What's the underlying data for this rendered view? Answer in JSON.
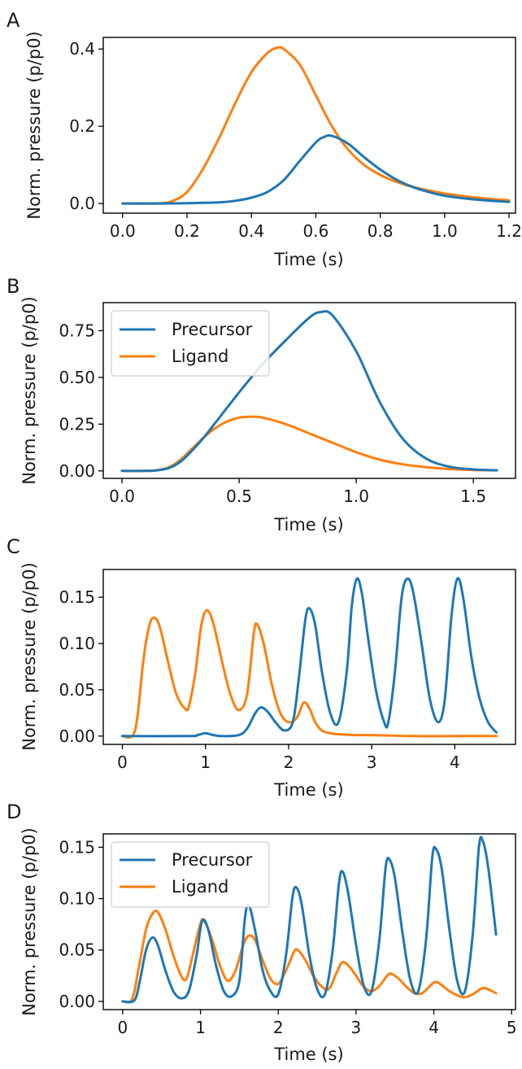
{
  "colors": {
    "precursor": "#1f77b4",
    "ligand": "#ff7f0e"
  },
  "chart_data": [
    {
      "panel": "A",
      "type": "line",
      "xlabel": "Time (s)",
      "ylabel": "Norm. pressure (p/p0)",
      "xlim": [
        -0.06,
        1.22
      ],
      "ylim": [
        -0.025,
        0.43
      ],
      "xticks": [
        0.0,
        0.2,
        0.4,
        0.6,
        0.8,
        1.0,
        1.2
      ],
      "xtick_labels": [
        "0.0",
        "0.2",
        "0.4",
        "0.6",
        "0.8",
        "1.0",
        "1.2"
      ],
      "yticks": [
        0.0,
        0.2,
        0.4
      ],
      "ytick_labels": [
        "0.0",
        "0.2",
        "0.4"
      ],
      "legend": null,
      "series": [
        {
          "key": "precursor",
          "color": "#1f77b4",
          "x": [
            0,
            0.1,
            0.2,
            0.3,
            0.35,
            0.4,
            0.45,
            0.5,
            0.55,
            0.6,
            0.625,
            0.65,
            0.7,
            0.75,
            0.8,
            0.85,
            0.9,
            0.95,
            1.0,
            1.1,
            1.2
          ],
          "y": [
            0,
            0,
            0.001,
            0.003,
            0.007,
            0.015,
            0.03,
            0.06,
            0.11,
            0.158,
            0.172,
            0.175,
            0.155,
            0.12,
            0.088,
            0.062,
            0.043,
            0.03,
            0.02,
            0.01,
            0.004
          ]
        },
        {
          "key": "ligand",
          "color": "#ff7f0e",
          "x": [
            0,
            0.1,
            0.15,
            0.2,
            0.25,
            0.3,
            0.35,
            0.4,
            0.45,
            0.48,
            0.5,
            0.55,
            0.6,
            0.65,
            0.7,
            0.75,
            0.8,
            0.85,
            0.9,
            1.0,
            1.1,
            1.2
          ],
          "y": [
            0,
            0,
            0.005,
            0.03,
            0.09,
            0.17,
            0.26,
            0.34,
            0.39,
            0.403,
            0.4,
            0.36,
            0.28,
            0.2,
            0.14,
            0.1,
            0.074,
            0.056,
            0.043,
            0.026,
            0.015,
            0.008
          ]
        }
      ]
    },
    {
      "panel": "B",
      "type": "line",
      "xlabel": "Time (s)",
      "ylabel": "Norm. pressure (p/p0)",
      "xlim": [
        -0.08,
        1.68
      ],
      "ylim": [
        -0.04,
        0.9
      ],
      "xticks": [
        0.0,
        0.5,
        1.0,
        1.5
      ],
      "xtick_labels": [
        "0.0",
        "0.5",
        "1.0",
        "1.5"
      ],
      "yticks": [
        0.0,
        0.25,
        0.5,
        0.75
      ],
      "ytick_labels": [
        "0.00",
        "0.25",
        "0.50",
        "0.75"
      ],
      "legend": {
        "position": "top-left",
        "labels": [
          "Precursor",
          "Ligand"
        ]
      },
      "series": [
        {
          "key": "precursor",
          "color": "#1f77b4",
          "x": [
            0,
            0.1,
            0.15,
            0.2,
            0.25,
            0.3,
            0.35,
            0.4,
            0.5,
            0.6,
            0.7,
            0.8,
            0.85,
            0.9,
            1.0,
            1.1,
            1.2,
            1.3,
            1.4,
            1.5,
            1.6
          ],
          "y": [
            0,
            0,
            0.003,
            0.015,
            0.05,
            0.11,
            0.18,
            0.26,
            0.42,
            0.57,
            0.7,
            0.82,
            0.85,
            0.83,
            0.64,
            0.37,
            0.17,
            0.065,
            0.022,
            0.008,
            0.003
          ]
        },
        {
          "key": "ligand",
          "color": "#ff7f0e",
          "x": [
            0,
            0.1,
            0.15,
            0.2,
            0.25,
            0.3,
            0.35,
            0.4,
            0.45,
            0.5,
            0.55,
            0.6,
            0.7,
            0.8,
            0.9,
            1.0,
            1.1,
            1.2,
            1.3,
            1.4,
            1.5,
            1.6
          ],
          "y": [
            0,
            0,
            0.004,
            0.02,
            0.06,
            0.12,
            0.18,
            0.23,
            0.265,
            0.285,
            0.29,
            0.285,
            0.25,
            0.2,
            0.15,
            0.1,
            0.06,
            0.035,
            0.02,
            0.01,
            0.005,
            0.003
          ]
        }
      ]
    },
    {
      "panel": "C",
      "type": "line",
      "xlabel": "Time (s)",
      "ylabel": "Norm. pressure (p/p0)",
      "xlim": [
        -0.23,
        4.73
      ],
      "ylim": [
        -0.009,
        0.18
      ],
      "xticks": [
        0,
        1,
        2,
        3,
        4
      ],
      "xtick_labels": [
        "0",
        "1",
        "2",
        "3",
        "4"
      ],
      "yticks": [
        0.0,
        0.05,
        0.1,
        0.15
      ],
      "ytick_labels": [
        "0.00",
        "0.05",
        "0.10",
        "0.15"
      ],
      "legend": null,
      "series": [
        {
          "key": "precursor",
          "color": "#1f77b4",
          "x": [
            0,
            0.8,
            0.9,
            1.0,
            1.1,
            1.2,
            1.4,
            1.5,
            1.6,
            1.67,
            1.75,
            1.85,
            1.95,
            2.05,
            2.12,
            2.2,
            2.25,
            2.32,
            2.4,
            2.5,
            2.6,
            2.7,
            2.76,
            2.82,
            2.88,
            2.95,
            3.05,
            3.15,
            3.2,
            3.28,
            3.36,
            3.43,
            3.5,
            3.6,
            3.7,
            3.8,
            3.88,
            3.96,
            4.03,
            4.1,
            4.2,
            4.3,
            4.4,
            4.5
          ],
          "y": [
            0,
            0,
            0.001,
            0.003,
            0.001,
            0,
            0.001,
            0.008,
            0.025,
            0.031,
            0.026,
            0.014,
            0.006,
            0.015,
            0.06,
            0.125,
            0.138,
            0.12,
            0.07,
            0.025,
            0.015,
            0.07,
            0.14,
            0.17,
            0.155,
            0.11,
            0.05,
            0.015,
            0.015,
            0.07,
            0.15,
            0.17,
            0.155,
            0.1,
            0.04,
            0.015,
            0.04,
            0.13,
            0.17,
            0.15,
            0.085,
            0.04,
            0.015,
            0.004
          ]
        },
        {
          "key": "ligand",
          "color": "#ff7f0e",
          "x": [
            0,
            0.12,
            0.18,
            0.25,
            0.32,
            0.38,
            0.45,
            0.55,
            0.65,
            0.75,
            0.8,
            0.88,
            0.95,
            1.02,
            1.1,
            1.2,
            1.3,
            1.4,
            1.5,
            1.58,
            1.62,
            1.7,
            1.8,
            1.9,
            2.0,
            2.1,
            2.18,
            2.25,
            2.32,
            2.4,
            2.5,
            2.6,
            2.8,
            3.0,
            3.5,
            4.0,
            4.5
          ],
          "y": [
            0,
            0,
            0.02,
            0.08,
            0.118,
            0.128,
            0.118,
            0.08,
            0.045,
            0.03,
            0.032,
            0.07,
            0.12,
            0.136,
            0.12,
            0.08,
            0.045,
            0.028,
            0.045,
            0.11,
            0.121,
            0.1,
            0.055,
            0.025,
            0.015,
            0.02,
            0.036,
            0.03,
            0.015,
            0.006,
            0.003,
            0.002,
            0.001,
            0.001,
            0,
            0,
            0
          ]
        }
      ]
    },
    {
      "panel": "D",
      "type": "line",
      "xlabel": "Time (s)",
      "ylabel": "Norm. pressure (p/p0)",
      "xlim": [
        -0.25,
        5.05
      ],
      "ylim": [
        -0.008,
        0.163
      ],
      "xticks": [
        0,
        1,
        2,
        3,
        4,
        5
      ],
      "xtick_labels": [
        "0",
        "1",
        "2",
        "3",
        "4",
        "5"
      ],
      "yticks": [
        0.0,
        0.05,
        0.1,
        0.15
      ],
      "ytick_labels": [
        "0.00",
        "0.05",
        "0.10",
        "0.15"
      ],
      "legend": {
        "position": "top-left",
        "labels": [
          "Precursor",
          "Ligand"
        ]
      },
      "series": [
        {
          "key": "precursor",
          "color": "#1f77b4",
          "x": [
            0,
            0.15,
            0.22,
            0.3,
            0.38,
            0.45,
            0.55,
            0.65,
            0.75,
            0.85,
            0.95,
            1.02,
            1.1,
            1.2,
            1.3,
            1.4,
            1.5,
            1.57,
            1.62,
            1.7,
            1.8,
            1.9,
            2.0,
            2.1,
            2.18,
            2.23,
            2.3,
            2.4,
            2.5,
            2.6,
            2.7,
            2.78,
            2.83,
            2.9,
            3.0,
            3.1,
            3.2,
            3.3,
            3.38,
            3.43,
            3.5,
            3.6,
            3.7,
            3.8,
            3.9,
            3.98,
            4.03,
            4.1,
            4.2,
            4.3,
            4.4,
            4.5,
            4.58,
            4.63,
            4.7,
            4.8
          ],
          "y": [
            0,
            0.001,
            0.02,
            0.05,
            0.062,
            0.055,
            0.03,
            0.01,
            0.003,
            0.01,
            0.045,
            0.078,
            0.07,
            0.035,
            0.01,
            0.005,
            0.02,
            0.08,
            0.094,
            0.07,
            0.03,
            0.01,
            0.007,
            0.045,
            0.1,
            0.111,
            0.095,
            0.045,
            0.012,
            0.007,
            0.05,
            0.115,
            0.126,
            0.105,
            0.055,
            0.015,
            0.01,
            0.06,
            0.13,
            0.138,
            0.12,
            0.065,
            0.02,
            0.01,
            0.06,
            0.14,
            0.148,
            0.13,
            0.07,
            0.02,
            0.01,
            0.065,
            0.15,
            0.156,
            0.13,
            0.065
          ]
        },
        {
          "key": "ligand",
          "color": "#ff7f0e",
          "x": [
            0,
            0.12,
            0.2,
            0.3,
            0.38,
            0.45,
            0.55,
            0.65,
            0.75,
            0.82,
            0.9,
            1.0,
            1.05,
            1.15,
            1.25,
            1.35,
            1.45,
            1.55,
            1.62,
            1.7,
            1.8,
            1.9,
            2.0,
            2.1,
            2.2,
            2.25,
            2.35,
            2.45,
            2.55,
            2.65,
            2.75,
            2.82,
            2.9,
            3.0,
            3.1,
            3.2,
            3.3,
            3.4,
            3.45,
            3.55,
            3.65,
            3.75,
            3.85,
            3.95,
            4.02,
            4.1,
            4.2,
            4.3,
            4.4,
            4.5,
            4.6,
            4.65,
            4.72,
            4.8
          ],
          "y": [
            0,
            0.002,
            0.03,
            0.07,
            0.085,
            0.087,
            0.07,
            0.045,
            0.025,
            0.022,
            0.045,
            0.076,
            0.078,
            0.06,
            0.035,
            0.02,
            0.03,
            0.055,
            0.064,
            0.06,
            0.04,
            0.022,
            0.017,
            0.03,
            0.048,
            0.05,
            0.04,
            0.025,
            0.015,
            0.012,
            0.028,
            0.038,
            0.035,
            0.025,
            0.014,
            0.01,
            0.015,
            0.025,
            0.027,
            0.022,
            0.014,
            0.008,
            0.008,
            0.015,
            0.019,
            0.016,
            0.01,
            0.006,
            0.004,
            0.007,
            0.012,
            0.013,
            0.011,
            0.008
          ]
        }
      ]
    }
  ]
}
